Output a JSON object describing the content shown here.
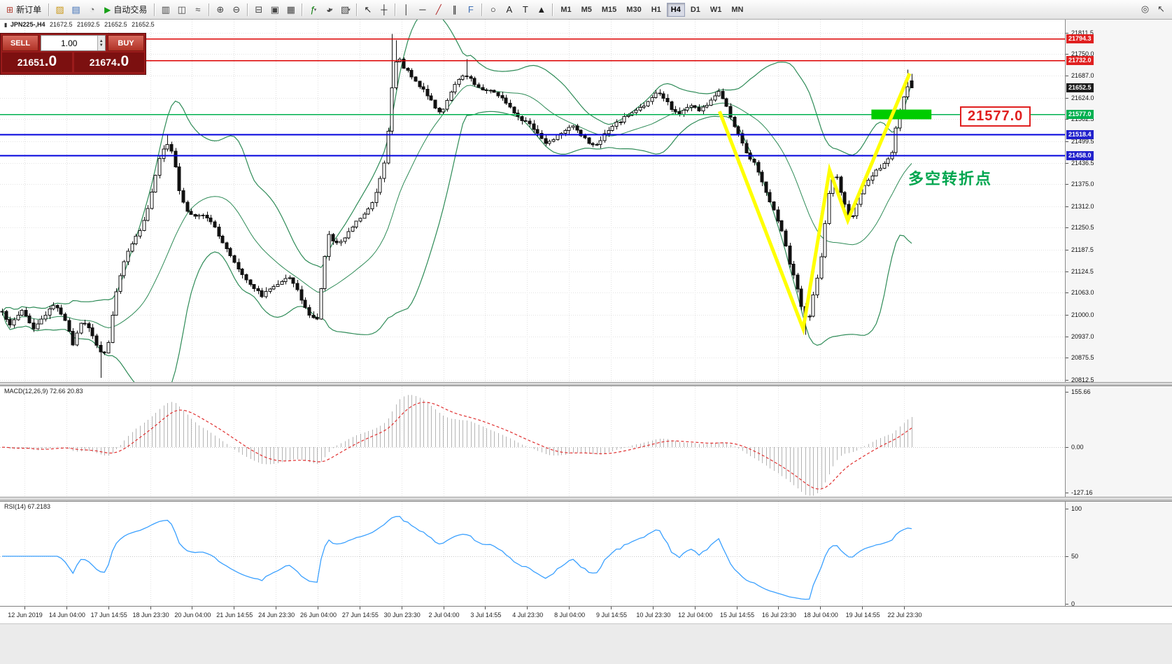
{
  "toolbar": {
    "new_order_label": "新订单",
    "auto_trading_label": "自动交易",
    "items": [
      {
        "type": "button",
        "name": "new-order-button",
        "icon_name": "new-order-icon",
        "glyph": "⊞",
        "glyph_color": "#b23b2e",
        "label_key": "new_order_label"
      },
      {
        "type": "sep"
      },
      {
        "type": "icon",
        "name": "charts-window-icon",
        "glyph": "▨",
        "color": "#c99718"
      },
      {
        "type": "icon",
        "name": "market-watch-icon",
        "glyph": "▤",
        "color": "#3f6fb5"
      },
      {
        "type": "icon",
        "name": "data-window-icon",
        "glyph": "◔",
        "color": "#6a6a6a"
      },
      {
        "type": "button",
        "name": "auto-trading-button",
        "icon_name": "auto-trading-icon",
        "glyph": "▶",
        "glyph_color": "#17a017",
        "label_key": "auto_trading_label"
      },
      {
        "type": "sep"
      },
      {
        "type": "icon",
        "name": "bar-chart-icon",
        "glyph": "▥",
        "color": "#444444"
      },
      {
        "type": "icon",
        "name": "candlestick-chart-icon",
        "glyph": "◫",
        "color": "#444444"
      },
      {
        "type": "icon",
        "name": "line-chart-icon",
        "glyph": "≈",
        "color": "#444444"
      },
      {
        "type": "sep"
      },
      {
        "type": "icon",
        "name": "zoom-in-icon",
        "glyph": "⊕",
        "color": "#444444"
      },
      {
        "type": "icon",
        "name": "zoom-out-icon",
        "glyph": "⊖",
        "color": "#444444"
      },
      {
        "type": "sep"
      },
      {
        "type": "icon",
        "name": "tile-windows-icon",
        "glyph": "⊟",
        "color": "#444444"
      },
      {
        "type": "icon",
        "name": "cascade-windows-icon",
        "glyph": "▣",
        "color": "#444444"
      },
      {
        "type": "icon",
        "name": "grid-icon",
        "glyph": "▦",
        "color": "#444444"
      },
      {
        "type": "sep"
      },
      {
        "type": "icon",
        "name": "indicators-icon",
        "glyph": "ƒ",
        "color": "#0a7d0a",
        "caret": true
      },
      {
        "type": "icon",
        "name": "periods-icon",
        "glyph": "◕",
        "color": "#444444",
        "caret": true
      },
      {
        "type": "icon",
        "name": "templates-icon",
        "glyph": "▧",
        "color": "#444444",
        "caret": true
      },
      {
        "type": "sep"
      },
      {
        "type": "icon",
        "name": "cursor-icon",
        "glyph": "↖",
        "color": "#222222"
      },
      {
        "type": "icon",
        "name": "crosshair-icon",
        "glyph": "┼",
        "color": "#222222"
      },
      {
        "type": "sep"
      },
      {
        "type": "icon",
        "name": "vertical-line-icon",
        "glyph": "│",
        "color": "#222222"
      },
      {
        "type": "icon",
        "name": "horizontal-line-icon",
        "glyph": "─",
        "color": "#222222"
      },
      {
        "type": "icon",
        "name": "trendline-icon",
        "glyph": "╱",
        "color": "#b22a2a"
      },
      {
        "type": "icon",
        "name": "equidistant-channel-icon",
        "glyph": "∥",
        "color": "#222222"
      },
      {
        "type": "icon",
        "name": "fibonacci-icon",
        "glyph": "F",
        "color": "#3f6fb5"
      },
      {
        "type": "sep"
      },
      {
        "type": "icon",
        "name": "shapes-icon",
        "glyph": "○",
        "color": "#222222"
      },
      {
        "type": "icon",
        "name": "text-icon",
        "glyph": "A",
        "color": "#222222"
      },
      {
        "type": "icon",
        "name": "text-label-icon",
        "glyph": "T",
        "color": "#222222"
      },
      {
        "type": "icon",
        "name": "arrows-icon",
        "glyph": "▲",
        "color": "#222222"
      },
      {
        "type": "sep"
      }
    ],
    "timeframes": [
      {
        "label": "M1",
        "active": false
      },
      {
        "label": "M5",
        "active": false
      },
      {
        "label": "M15",
        "active": false
      },
      {
        "label": "M30",
        "active": false
      },
      {
        "label": "H1",
        "active": false
      },
      {
        "label": "H4",
        "active": true
      },
      {
        "label": "D1",
        "active": false
      },
      {
        "label": "W1",
        "active": false
      },
      {
        "label": "MN",
        "active": false
      }
    ],
    "right_icons": [
      {
        "name": "search-icon",
        "glyph": "◎",
        "color": "#444444"
      },
      {
        "name": "pointer-tool-icon",
        "glyph": "↖",
        "color": "#444444"
      }
    ]
  },
  "chart_header": {
    "icon_glyph": "▮",
    "symbol": "JPN225-,H4",
    "open": "21672.5",
    "high": "21692.5",
    "low": "21652.5",
    "close": "21652.5"
  },
  "trade_panel": {
    "sell_label": "SELL",
    "buy_label": "BUY",
    "volume": "1.00",
    "spin_up": "▲",
    "spin_down": "▼",
    "sell_main": "21651",
    "sell_pips": ".0",
    "buy_main": "21674",
    "buy_pips": ".0"
  },
  "annotations": {
    "price_label": "21577.0",
    "turning_point": "多空转折点"
  },
  "macd_panel": {
    "title": "MACD(12,26,9) 72.66 20.83",
    "ticks": [
      "155.66",
      "0.00",
      "-127.16"
    ]
  },
  "rsi_panel": {
    "title": "RSI(14) 67.2183",
    "ticks": [
      "100",
      "50",
      "0"
    ]
  },
  "price_axis": {
    "ticks": [
      "21811.5",
      "21750.0",
      "21687.0",
      "21624.0",
      "21562.5",
      "21499.5",
      "21436.5",
      "21375.0",
      "21312.0",
      "21250.5",
      "21187.5",
      "21124.5",
      "21063.0",
      "21000.0",
      "20937.0",
      "20875.5",
      "20812.5"
    ],
    "markers": [
      {
        "label": "21794.3",
        "price": 21794.3,
        "color": "#e02020"
      },
      {
        "label": "21732.0",
        "price": 21732.0,
        "color": "#e02020"
      },
      {
        "label": "21652.5",
        "price": 21652.5,
        "color": "#1c1c1c"
      },
      {
        "label": "21577.0",
        "price": 21577.0,
        "color": "#00b050"
      },
      {
        "label": "21518.4",
        "price": 21518.4,
        "color": "#2222cc"
      },
      {
        "label": "21458.0",
        "price": 21458.0,
        "color": "#2222cc"
      }
    ]
  },
  "time_axis": {
    "labels": [
      "12 Jun 2019",
      "14 Jun 04:00",
      "17 Jun 14:55",
      "18 Jun 23:30",
      "20 Jun 04:00",
      "21 Jun 14:55",
      "24 Jun 23:30",
      "26 Jun 04:00",
      "27 Jun 14:55",
      "30 Jun 23:30",
      "2 Jul 04:00",
      "3 Jul 14:55",
      "4 Jul 23:30",
      "8 Jul 04:00",
      "9 Jul 14:55",
      "10 Jul 23:30",
      "12 Jul 04:00",
      "15 Jul 14:55",
      "16 Jul 23:30",
      "18 Jul 04:00",
      "19 Jul 14:55",
      "22 Jul 23:30"
    ]
  },
  "chart_data": {
    "type": "candlestick",
    "symbol": "JPN225-",
    "timeframe": "H4",
    "last_ohlc": {
      "open": 21672.5,
      "high": 21692.5,
      "low": 21652.5,
      "close": 21652.5
    },
    "ylim": [
      20806,
      21849
    ],
    "num_candles": 232,
    "candle_colors": {
      "up_fill": "#ffffff",
      "down_fill": "#111111",
      "outline": "#111111"
    },
    "bollinger": {
      "period": 20,
      "deviation": 2,
      "color": "#2e8b57"
    },
    "price_path": [
      [
        0.0,
        21005
      ],
      [
        0.01,
        20970
      ],
      [
        0.022,
        21015
      ],
      [
        0.034,
        20960
      ],
      [
        0.046,
        20990
      ],
      [
        0.058,
        21035
      ],
      [
        0.068,
        20990
      ],
      [
        0.078,
        20915
      ],
      [
        0.088,
        20990
      ],
      [
        0.098,
        20945
      ],
      [
        0.11,
        20880
      ],
      [
        0.116,
        20905
      ],
      [
        0.124,
        21050
      ],
      [
        0.132,
        21140
      ],
      [
        0.142,
        21205
      ],
      [
        0.152,
        21245
      ],
      [
        0.163,
        21330
      ],
      [
        0.172,
        21445
      ],
      [
        0.18,
        21495
      ],
      [
        0.188,
        21460
      ],
      [
        0.196,
        21340
      ],
      [
        0.205,
        21290
      ],
      [
        0.213,
        21280
      ],
      [
        0.222,
        21290
      ],
      [
        0.231,
        21265
      ],
      [
        0.24,
        21215
      ],
      [
        0.249,
        21180
      ],
      [
        0.258,
        21140
      ],
      [
        0.266,
        21110
      ],
      [
        0.276,
        21080
      ],
      [
        0.286,
        21055
      ],
      [
        0.295,
        21075
      ],
      [
        0.305,
        21095
      ],
      [
        0.314,
        21110
      ],
      [
        0.322,
        21085
      ],
      [
        0.331,
        21030
      ],
      [
        0.34,
        20990
      ],
      [
        0.347,
        20985
      ],
      [
        0.353,
        21130
      ],
      [
        0.358,
        21235
      ],
      [
        0.366,
        21200
      ],
      [
        0.374,
        21215
      ],
      [
        0.382,
        21245
      ],
      [
        0.39,
        21270
      ],
      [
        0.398,
        21290
      ],
      [
        0.406,
        21320
      ],
      [
        0.413,
        21365
      ],
      [
        0.42,
        21440
      ],
      [
        0.426,
        21570
      ],
      [
        0.43,
        21695
      ],
      [
        0.435,
        21745
      ],
      [
        0.44,
        21715
      ],
      [
        0.447,
        21700
      ],
      [
        0.455,
        21670
      ],
      [
        0.463,
        21645
      ],
      [
        0.47,
        21625
      ],
      [
        0.477,
        21595
      ],
      [
        0.482,
        21580
      ],
      [
        0.489,
        21615
      ],
      [
        0.497,
        21655
      ],
      [
        0.505,
        21685
      ],
      [
        0.512,
        21690
      ],
      [
        0.52,
        21660
      ],
      [
        0.528,
        21650
      ],
      [
        0.536,
        21645
      ],
      [
        0.543,
        21638
      ],
      [
        0.551,
        21618
      ],
      [
        0.559,
        21598
      ],
      [
        0.566,
        21572
      ],
      [
        0.574,
        21558
      ],
      [
        0.582,
        21542
      ],
      [
        0.589,
        21522
      ],
      [
        0.597,
        21492
      ],
      [
        0.605,
        21506
      ],
      [
        0.613,
        21522
      ],
      [
        0.62,
        21536
      ],
      [
        0.628,
        21546
      ],
      [
        0.636,
        21518
      ],
      [
        0.643,
        21498
      ],
      [
        0.651,
        21482
      ],
      [
        0.659,
        21508
      ],
      [
        0.666,
        21528
      ],
      [
        0.674,
        21548
      ],
      [
        0.682,
        21562
      ],
      [
        0.689,
        21576
      ],
      [
        0.697,
        21588
      ],
      [
        0.705,
        21602
      ],
      [
        0.713,
        21618
      ],
      [
        0.72,
        21642
      ],
      [
        0.728,
        21622
      ],
      [
        0.736,
        21592
      ],
      [
        0.743,
        21576
      ],
      [
        0.751,
        21592
      ],
      [
        0.759,
        21606
      ],
      [
        0.766,
        21586
      ],
      [
        0.774,
        21602
      ],
      [
        0.782,
        21626
      ],
      [
        0.789,
        21642
      ],
      [
        0.797,
        21598
      ],
      [
        0.805,
        21545
      ],
      [
        0.813,
        21502
      ],
      [
        0.82,
        21458
      ],
      [
        0.828,
        21432
      ],
      [
        0.836,
        21382
      ],
      [
        0.843,
        21328
      ],
      [
        0.851,
        21288
      ],
      [
        0.859,
        21222
      ],
      [
        0.866,
        21148
      ],
      [
        0.874,
        21078
      ],
      [
        0.878,
        21028
      ],
      [
        0.884,
        20985
      ],
      [
        0.888,
        20998
      ],
      [
        0.893,
        21072
      ],
      [
        0.899,
        21132
      ],
      [
        0.905,
        21272
      ],
      [
        0.911,
        21382
      ],
      [
        0.916,
        21412
      ],
      [
        0.922,
        21352
      ],
      [
        0.928,
        21302
      ],
      [
        0.933,
        21272
      ],
      [
        0.939,
        21312
      ],
      [
        0.945,
        21352
      ],
      [
        0.951,
        21382
      ],
      [
        0.958,
        21408
      ],
      [
        0.964,
        21422
      ],
      [
        0.971,
        21442
      ],
      [
        0.978,
        21458
      ],
      [
        0.984,
        21556
      ],
      [
        0.991,
        21622
      ],
      [
        0.997,
        21668
      ],
      [
        1.0,
        21652.5
      ]
    ],
    "wick_events": [
      {
        "f": 0.11,
        "low": 20818
      },
      {
        "f": 0.18,
        "high": 21520
      },
      {
        "f": 0.43,
        "high": 21808
      },
      {
        "f": 0.435,
        "high": 21790
      },
      {
        "f": 0.512,
        "high": 21735
      },
      {
        "f": 0.884,
        "low": 20942
      },
      {
        "f": 0.997,
        "high": 21705
      }
    ],
    "hlines": [
      {
        "price": 21794.3,
        "color": "#dd0000",
        "width": 1.5
      },
      {
        "price": 21732.0,
        "color": "#dd0000",
        "width": 1.5
      },
      {
        "price": 21577.0,
        "color": "#00b050",
        "width": 1.5
      },
      {
        "price": 21518.4,
        "color": "#0000dd",
        "width": 2
      },
      {
        "price": 21458.0,
        "color": "#0000dd",
        "width": 2
      }
    ],
    "zigzag": {
      "color": "#ffff00",
      "width": 5,
      "points": [
        [
          0.791,
          21585
        ],
        [
          0.883,
          20959
        ],
        [
          0.912,
          21416
        ],
        [
          0.932,
          21271
        ],
        [
          1.0,
          21694
        ]
      ]
    },
    "highlight_rect": {
      "color": "#00cc00",
      "x_from": 0.958,
      "x_to": 1.024,
      "price_from": 21590,
      "price_to": 21562
    },
    "macd": {
      "params": [
        12,
        26,
        9
      ],
      "current": [
        72.66,
        20.83
      ],
      "ylim": [
        171,
        -139
      ],
      "bar_color": "#b4b4b4",
      "signal_color": "#e03030"
    },
    "rsi": {
      "period": 14,
      "current": 67.2183,
      "ylim": [
        0,
        100
      ],
      "line_color": "#3aa0ff"
    }
  }
}
